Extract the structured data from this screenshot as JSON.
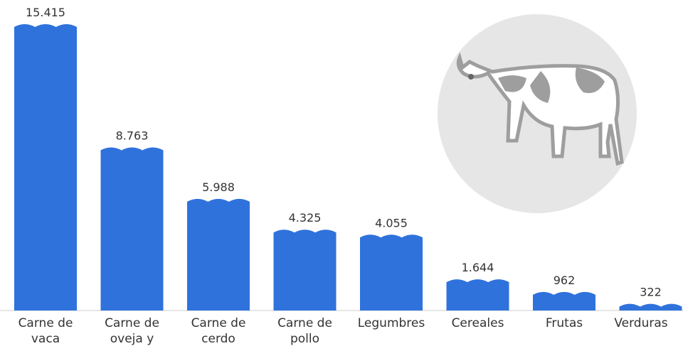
{
  "chart_data": {
    "type": "bar",
    "categories": [
      "Carne de vaca",
      "Carne de oveja y",
      "Carne de cerdo",
      "Carne de pollo",
      "Legumbres",
      "Cereales",
      "Frutas",
      "Verduras"
    ],
    "values": [
      15415,
      8763,
      5988,
      4325,
      4055,
      1644,
      962,
      322
    ],
    "value_labels": [
      "15.415",
      "8.763",
      "5.988",
      "4.325",
      "4.055",
      "1.644",
      "962",
      "322"
    ],
    "color": "#2f72dc"
  }
}
